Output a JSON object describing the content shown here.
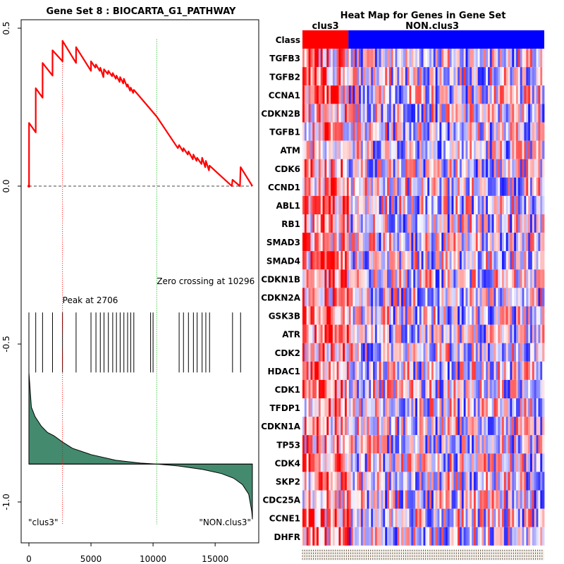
{
  "chart_data": [
    {
      "type": "line",
      "title": "Gene Set  8 : BIOCARTA_G1_PATHWAY",
      "xlim": [
        0,
        18000
      ],
      "ylim": [
        -1.05,
        0.5
      ],
      "xticks": [
        0,
        5000,
        10000,
        15000
      ],
      "yticks": [
        0.5,
        0.0,
        -0.5,
        -1.0
      ],
      "ytick_labels": [
        "0.5",
        "0.0",
        "-0.5",
        "-1.0"
      ],
      "es_series": {
        "name": "running enrichment score",
        "color": "#ff0000",
        "x": [
          0,
          10,
          10,
          550,
          550,
          1100,
          1100,
          1900,
          1900,
          2706,
          2706,
          3800,
          3800,
          5000,
          5000,
          5350,
          5400,
          5700,
          5750,
          6000,
          6050,
          6350,
          6400,
          6700,
          6750,
          7000,
          7050,
          7300,
          7350,
          7600,
          7650,
          7900,
          7950,
          8150,
          8200,
          8400,
          8450,
          9000,
          10296,
          12000,
          12100,
          12400,
          12450,
          12800,
          12850,
          13200,
          13250,
          13500,
          13550,
          13900,
          13950,
          14200,
          14250,
          14500,
          14550,
          16350,
          16400,
          17000,
          17050,
          18000
        ],
        "y": [
          0.0,
          0.0,
          0.2,
          0.17,
          0.31,
          0.28,
          0.39,
          0.35,
          0.43,
          0.395,
          0.46,
          0.39,
          0.44,
          0.365,
          0.395,
          0.375,
          0.385,
          0.365,
          0.375,
          0.345,
          0.37,
          0.355,
          0.365,
          0.348,
          0.358,
          0.34,
          0.35,
          0.33,
          0.345,
          0.325,
          0.34,
          0.315,
          0.322,
          0.302,
          0.312,
          0.295,
          0.305,
          0.28,
          0.22,
          0.12,
          0.13,
          0.11,
          0.12,
          0.1,
          0.11,
          0.085,
          0.1,
          0.08,
          0.09,
          0.07,
          0.09,
          0.06,
          0.08,
          0.05,
          0.065,
          0.0,
          0.02,
          0.0,
          0.06,
          0.0
        ]
      },
      "zero_line": 0.0,
      "peak": {
        "x": 2706,
        "label": "Peak at 2706"
      },
      "zero_crossing": {
        "x": 10296,
        "label": "Zero crossing at 10296"
      },
      "hit_positions": [
        0,
        550,
        1100,
        1900,
        2706,
        3800,
        5000,
        5400,
        5750,
        6050,
        6400,
        6750,
        7050,
        7350,
        7650,
        7950,
        8200,
        8450,
        9800,
        10000,
        12100,
        12450,
        12850,
        13250,
        13550,
        13950,
        14250,
        14550,
        16400,
        17050
      ],
      "ranked_metric": {
        "baseline": -0.88,
        "x": [
          0,
          200,
          500,
          1000,
          1500,
          2000,
          2706,
          3500,
          5000,
          7000,
          9000,
          10296,
          12000,
          14000,
          15500,
          16500,
          17200,
          17700,
          17950,
          18000
        ],
        "val": [
          -0.59,
          -0.7,
          -0.73,
          -0.76,
          -0.78,
          -0.79,
          -0.81,
          -0.83,
          -0.85,
          -0.868,
          -0.877,
          -0.88,
          -0.886,
          -0.897,
          -0.91,
          -0.925,
          -0.945,
          -0.975,
          -1.03,
          -1.055
        ],
        "fill": "#448a6e"
      },
      "left_label": "\"clus3\"",
      "right_label": "\"NON.clus3\""
    },
    {
      "type": "heatmap",
      "title": "Heat Map for Genes in Gene Set",
      "class_row_label": "Class",
      "classes": [
        {
          "name": "clus3",
          "color": "#ff0000",
          "fraction": 0.19
        },
        {
          "name": "NON.clus3",
          "color": "#0000ff",
          "fraction": 0.81
        }
      ],
      "genes": [
        "TGFB3",
        "TGFB2",
        "CCNA1",
        "CDKN2B",
        "TGFB1",
        "ATM",
        "CDK6",
        "CCND1",
        "ABL1",
        "RB1",
        "SMAD3",
        "SMAD4",
        "CDKN1B",
        "CDKN2A",
        "GSK3B",
        "ATR",
        "CDK2",
        "HDAC1",
        "CDK1",
        "TFDP1",
        "CDKN1A",
        "TP53",
        "CDK4",
        "SKP2",
        "CDC25A",
        "CCNE1",
        "DHFR"
      ],
      "color_low": "#0000ff",
      "color_mid": "#ffffff",
      "color_high": "#ff0000"
    }
  ]
}
